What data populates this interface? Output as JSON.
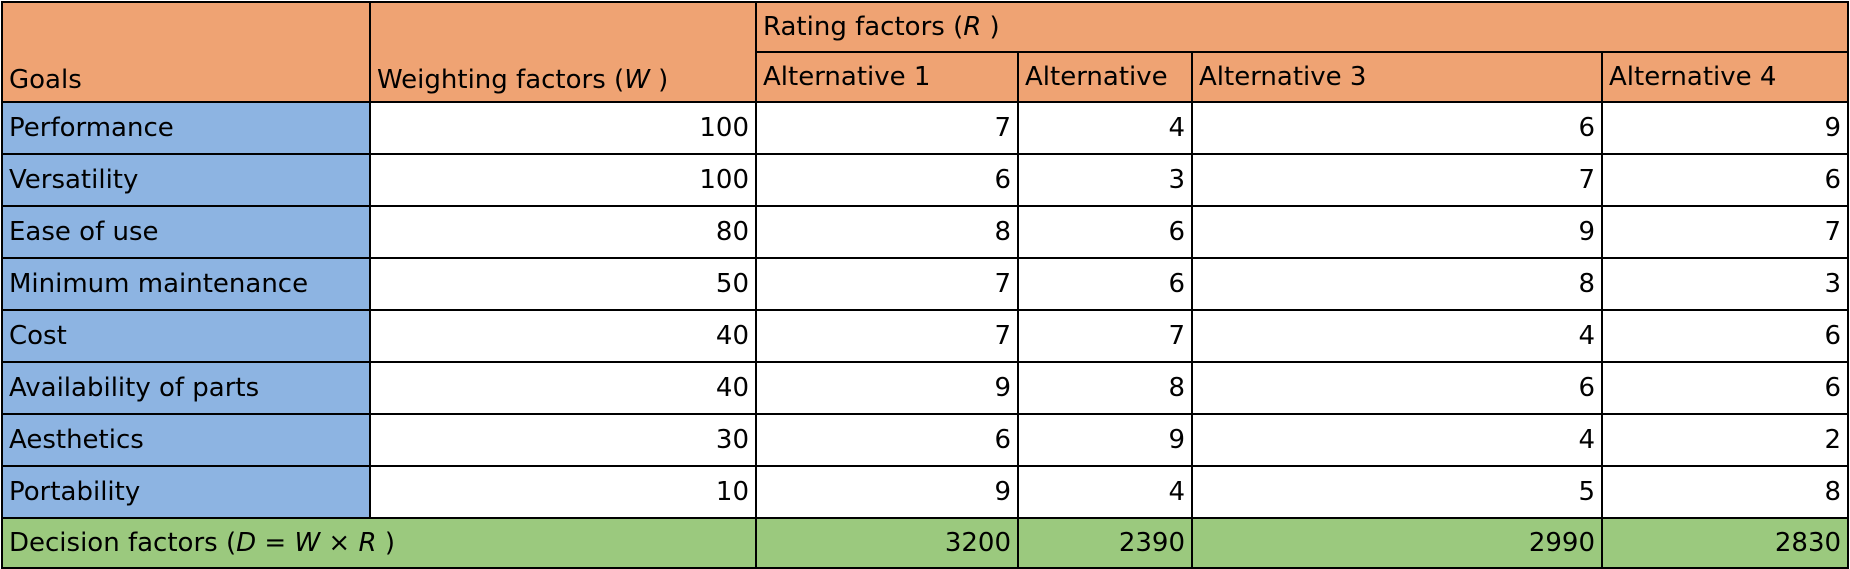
{
  "headers": {
    "goals": "Goals",
    "weighting_prefix": "Weighting factors (",
    "weighting_var": "W",
    "weighting_suffix": " )",
    "rating_prefix": "Rating factors (",
    "rating_var": "R",
    "rating_suffix": " )",
    "alternatives": [
      "Alternative 1",
      "Alternative",
      "Alternative 3",
      "Alternative 4"
    ]
  },
  "rows": [
    {
      "goal": "Performance",
      "weight": "100",
      "ratings": [
        "7",
        "4",
        "6",
        "9"
      ]
    },
    {
      "goal": "Versatility",
      "weight": "100",
      "ratings": [
        "6",
        "3",
        "7",
        "6"
      ]
    },
    {
      "goal": "Ease of use",
      "weight": "80",
      "ratings": [
        "8",
        "6",
        "9",
        "7"
      ]
    },
    {
      "goal": "Minimum maintenance",
      "weight": "50",
      "ratings": [
        "7",
        "6",
        "8",
        "3"
      ]
    },
    {
      "goal": "Cost",
      "weight": "40",
      "ratings": [
        "7",
        "7",
        "4",
        "6"
      ]
    },
    {
      "goal": "Availability of parts",
      "weight": "40",
      "ratings": [
        "9",
        "8",
        "6",
        "6"
      ]
    },
    {
      "goal": "Aesthetics",
      "weight": "30",
      "ratings": [
        "6",
        "9",
        "4",
        "2"
      ]
    },
    {
      "goal": "Portability",
      "weight": "10",
      "ratings": [
        "9",
        "4",
        "5",
        "8"
      ]
    }
  ],
  "totals": {
    "label_prefix": "Decision factors (",
    "label_d": "D",
    "label_eq": " = ",
    "label_w": "W",
    "label_times": " × ",
    "label_r": "R",
    "label_suffix": " )",
    "values": [
      "3200",
      "2390",
      "2990",
      "2830"
    ]
  },
  "colors": {
    "header": "#EFA373",
    "goal_column": "#8DB4E2",
    "totals_row": "#9BC97E"
  }
}
